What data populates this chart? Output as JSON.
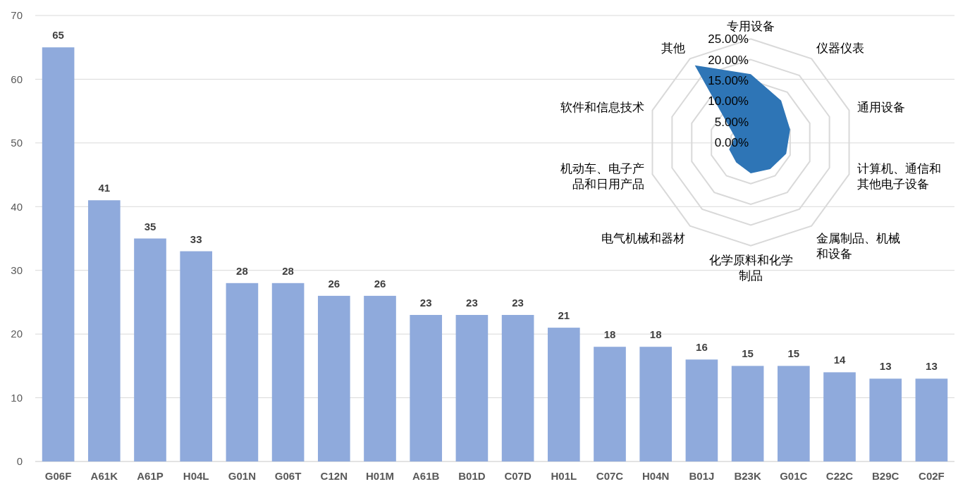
{
  "chart_data": [
    {
      "type": "bar",
      "categories": [
        "G06F",
        "A61K",
        "A61P",
        "H04L",
        "G01N",
        "G06T",
        "C12N",
        "H01M",
        "A61B",
        "B01D",
        "C07D",
        "H01L",
        "C07C",
        "H04N",
        "B01J",
        "B23K",
        "G01C",
        "C22C",
        "B29C",
        "C02F"
      ],
      "values": [
        65,
        41,
        35,
        33,
        28,
        28,
        26,
        26,
        23,
        23,
        23,
        21,
        18,
        18,
        16,
        15,
        15,
        14,
        13,
        13
      ],
      "color": "#8faadc",
      "ylim": [
        0,
        70
      ],
      "yticks": [
        0,
        10,
        20,
        30,
        40,
        50,
        60,
        70
      ],
      "grid": "y",
      "data_labels": true
    },
    {
      "type": "radar",
      "categories": [
        "专用设备",
        "仪器仪表",
        "通用设备",
        "计算机、通信和其他电子设备",
        "金属制品、机械和设备",
        "化学原料和化学制品",
        "电气机械和器材",
        "机动车、电子产品和日用产品",
        "软件和信息技术",
        "其他"
      ],
      "series": [
        {
          "color": "#2e75b6",
          "values": [
            16.5,
            12.5,
            10,
            9,
            8,
            7.5,
            6,
            5.5,
            4,
            23
          ]
        }
      ],
      "ylim": [
        0,
        25
      ],
      "yticks": [
        {
          "value": 0,
          "label": "0.00%"
        },
        {
          "value": 5,
          "label": "5.00%"
        },
        {
          "value": 10,
          "label": "10.00%"
        },
        {
          "value": 15,
          "label": "15.00%"
        },
        {
          "value": 20,
          "label": "20.00%"
        },
        {
          "value": 25,
          "label": "25.00%"
        }
      ],
      "grid": true
    }
  ]
}
